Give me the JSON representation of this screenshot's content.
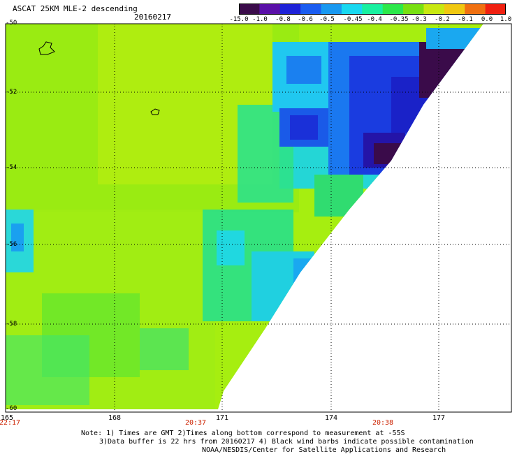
{
  "header": {
    "title": "ASCAT 25KM MLE-2 descending",
    "date": "20160217"
  },
  "colorbar": {
    "labels": [
      "-15.0",
      "-1.0",
      "-0.8",
      "-0.6",
      "-0.5",
      "-0.45",
      "-0.4",
      "-0.35",
      "-0.3",
      "-0.2",
      "-0.1",
      "0.0",
      "1.0"
    ],
    "colors": [
      "#3a0b4a",
      "#5a10a8",
      "#1e22d8",
      "#1a5cf0",
      "#1898f0",
      "#18d8f0",
      "#18f0a0",
      "#2ce84a",
      "#78e010",
      "#c8e810",
      "#f0c810",
      "#f07010",
      "#f02010"
    ]
  },
  "axes": {
    "lat_labels": [
      "-50",
      "-52",
      "-54",
      "-56",
      "-58",
      "-60"
    ],
    "lon_labels": [
      "165",
      "168",
      "171",
      "174",
      "177"
    ],
    "time_labels": [
      "22:17",
      "20:37",
      "20:38"
    ]
  },
  "notes": {
    "line1": "Note: 1) Times are GMT 2)Times along bottom correspond to measurement at -55S",
    "line2": "3)Data buffer is 22 hrs from 20160217 4) Black wind barbs indicate possible contamination",
    "line3": "NOAA/NESDIS/Center for Satellite Applications and Research"
  },
  "colors": {
    "background_field": "#a6ee10",
    "high_values": "#1a28d8",
    "extreme": "#3a0b4a",
    "time_text": "#cc2200"
  }
}
